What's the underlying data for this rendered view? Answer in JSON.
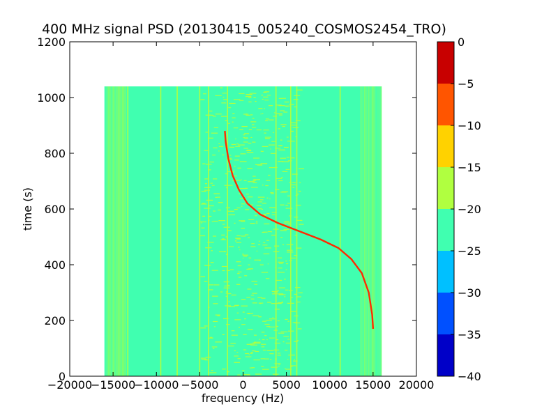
{
  "chart_data": {
    "type": "heatmap",
    "title": "400 MHz signal PSD (20130415_005240_COSMOS2454_TRO)",
    "xlabel": "frequency (Hz)",
    "ylabel": "time (s)",
    "xlim": [
      -20000,
      20000
    ],
    "ylim": [
      0,
      1200
    ],
    "x_ticks": [
      -20000,
      -15000,
      -10000,
      -5000,
      0,
      5000,
      10000,
      15000,
      20000
    ],
    "x_tick_labels": [
      "−20000",
      "−15000",
      "−10000",
      "−5000",
      "0",
      "5000",
      "10000",
      "15000",
      "20000"
    ],
    "y_ticks": [
      0,
      200,
      400,
      600,
      800,
      1000,
      1200
    ],
    "y_tick_labels": [
      "0",
      "200",
      "400",
      "600",
      "800",
      "1000",
      "1200"
    ],
    "data_extent": {
      "x": [
        -16000,
        16000
      ],
      "y": [
        0,
        1040
      ]
    },
    "colorbar": {
      "min": -40,
      "max": 0,
      "ticks": [
        0,
        -5,
        -10,
        -15,
        -20,
        -25,
        -30,
        -35,
        -40
      ],
      "tick_labels": [
        "0",
        "−5",
        "−10",
        "−15",
        "−20",
        "−25",
        "−30",
        "−35",
        "−40"
      ],
      "levels": [
        {
          "range": [
            -40,
            -35
          ],
          "color": "#0000c8"
        },
        {
          "range": [
            -35,
            -30
          ],
          "color": "#0050ff"
        },
        {
          "range": [
            -30,
            -25
          ],
          "color": "#00c0ff"
        },
        {
          "range": [
            -25,
            -20
          ],
          "color": "#40ffb0"
        },
        {
          "range": [
            -20,
            -15
          ],
          "color": "#b0ff40"
        },
        {
          "range": [
            -15,
            -10
          ],
          "color": "#ffd200"
        },
        {
          "range": [
            -10,
            -5
          ],
          "color": "#ff5500"
        },
        {
          "range": [
            -5,
            0
          ],
          "color": "#c80000"
        }
      ]
    },
    "background_level_db": -22,
    "signal_trace": {
      "level_db": -3,
      "points": [
        {
          "x": -2100,
          "y": 880
        },
        {
          "x": -2000,
          "y": 840
        },
        {
          "x": -1700,
          "y": 780
        },
        {
          "x": -1200,
          "y": 720
        },
        {
          "x": -500,
          "y": 670
        },
        {
          "x": 500,
          "y": 620
        },
        {
          "x": 2000,
          "y": 580
        },
        {
          "x": 4000,
          "y": 550
        },
        {
          "x": 6500,
          "y": 520
        },
        {
          "x": 9000,
          "y": 490
        },
        {
          "x": 11000,
          "y": 460
        },
        {
          "x": 12500,
          "y": 420
        },
        {
          "x": 13700,
          "y": 370
        },
        {
          "x": 14500,
          "y": 300
        },
        {
          "x": 14900,
          "y": 220
        },
        {
          "x": 15000,
          "y": 170
        }
      ]
    },
    "vertical_lines_hz": [
      -13300,
      -9500,
      -7600,
      -5000,
      -4000,
      -1800,
      3800,
      5500,
      6200,
      11200
    ],
    "noise_band_hz": [
      -5000,
      6500
    ]
  }
}
